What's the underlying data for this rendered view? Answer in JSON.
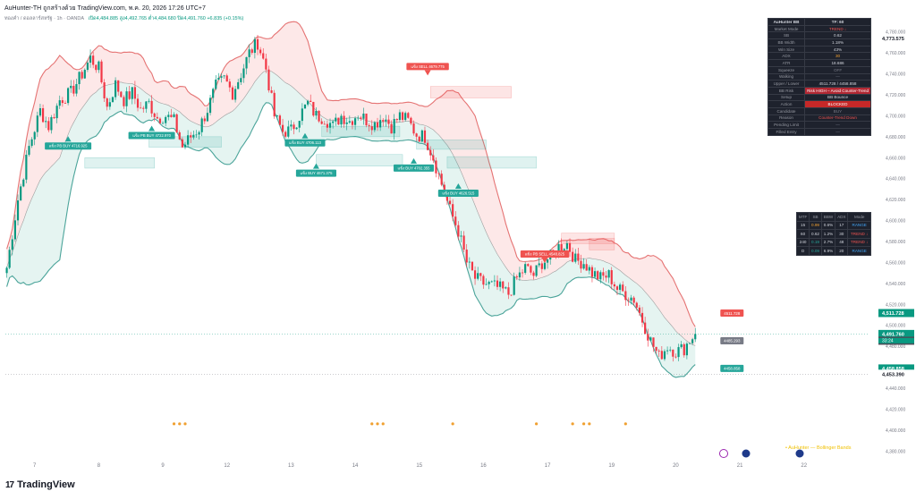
{
  "header": {
    "title": "AuHunter-TH ถูกสร้างด้วย TradingView.com, พ.ค. 20, 2026 17:26 UTC+7",
    "symbol_line": "ทองคำ / ดอลลาร์สหรัฐ · 1h · OANDA",
    "ohlc": "เปิด4,484.885  สูง4,492.765  ต่ำ4,484.680  ปิด4,491.760  +6.835 (+0.15%)"
  },
  "footer": {
    "logo_mark": "17",
    "logo_text": "TradingView",
    "indicator_label": "• AuHunter — Bollinger Bands"
  },
  "colors": {
    "up": "#089981",
    "down": "#f23645",
    "upper_band": "#e57373",
    "lower_band": "#4ba49a",
    "mid_band": "#9e9e9e",
    "fill_upper": "#fde4e4",
    "fill_lower": "#e0f2ef",
    "buy_label": "#26a69a",
    "sell_label": "#ef5350",
    "orange": "#f0a030"
  },
  "info_panel": {
    "title_left": "AuHunter BB",
    "title_right": "TF: 60",
    "rows": [
      {
        "k": "Market Mode",
        "v": "TREND ↓",
        "color": "#ef5350"
      },
      {
        "k": "SB",
        "v": "0.62"
      },
      {
        "k": "BB Width",
        "v": "1.18%"
      },
      {
        "k": "Win Size",
        "v": "43%"
      },
      {
        "k": "ADX",
        "v": "30",
        "color": "#f0a030"
      },
      {
        "k": "ATR",
        "v": "18.686"
      },
      {
        "k": "Squeeze",
        "v": "OFF",
        "color": "#787b86"
      },
      {
        "k": "Walking",
        "v": "—",
        "color": "#787b86"
      },
      {
        "k": "Upper / Lower",
        "v": "4511.728 / 4458.858"
      },
      {
        "k": "BB Risk",
        "v": "Risk HIGH – Avoid Counter-Trend",
        "bg": "#b22833"
      },
      {
        "k": "Setup",
        "v": "BB Bounce"
      },
      {
        "k": "Action",
        "v": "BLOCKED",
        "bg": "#c62828"
      },
      {
        "k": "Candidate",
        "v": "BUY",
        "color": "#787b86"
      },
      {
        "k": "Reason",
        "v": "Counter-Trend Down",
        "color": "#ef5350"
      },
      {
        "k": "Pending Limit",
        "v": "—",
        "color": "#787b86"
      },
      {
        "k": "Filled Entry",
        "v": "—",
        "color": "#787b86"
      }
    ]
  },
  "mtf_panel": {
    "headers": [
      "MTF",
      "SB",
      "BBW",
      "ADX",
      "Mode"
    ],
    "rows": [
      {
        "tf": "15",
        "sb": "0.99",
        "bbw": "0.6%",
        "adx": "17",
        "mode": "RANGE",
        "sb_color": "#f0a030",
        "mode_color": "#42a5f5"
      },
      {
        "tf": "60",
        "sb": "0.62",
        "bbw": "1.2%",
        "adx": "30",
        "mode": "TREND ↓",
        "sb_color": "#d1d4dc",
        "mode_color": "#ef5350"
      },
      {
        "tf": "240",
        "sb": "0.19",
        "bbw": "2.7%",
        "adx": "48",
        "mode": "TREND ↓",
        "sb_color": "#26a69a",
        "mode_color": "#ef5350"
      },
      {
        "tf": "D",
        "sb": "0.09",
        "bbw": "6.9%",
        "adx": "20",
        "mode": "RANGE",
        "sb_color": "#26a69a",
        "mode_color": "#42a5f5"
      }
    ]
  },
  "chart_data": {
    "type": "candlestick",
    "title": "",
    "ylim": [
      4370,
      4790
    ],
    "y_ticks": [
      4380,
      4400,
      4420,
      4440,
      4460,
      4480,
      4500,
      4520,
      4540,
      4560,
      4580,
      4600,
      4620,
      4640,
      4660,
      4680,
      4700,
      4720,
      4740,
      4760,
      4780
    ],
    "x_ticks": [
      {
        "label": "7",
        "bar": 10
      },
      {
        "label": "8",
        "bar": 33
      },
      {
        "label": "9",
        "bar": 56
      },
      {
        "label": "12",
        "bar": 79
      },
      {
        "label": "13",
        "bar": 102
      },
      {
        "label": "14",
        "bar": 125
      },
      {
        "label": "15",
        "bar": 148
      },
      {
        "label": "16",
        "bar": 171
      },
      {
        "label": "17",
        "bar": 194
      },
      {
        "label": "19",
        "bar": 217
      },
      {
        "label": "20",
        "bar": 240
      },
      {
        "label": "21",
        "bar": 263
      },
      {
        "label": "22",
        "bar": 286
      }
    ],
    "bar_count": 310,
    "last_bar": 247,
    "close_keypoints": [
      [
        0,
        4555
      ],
      [
        4,
        4620
      ],
      [
        8,
        4670
      ],
      [
        12,
        4705
      ],
      [
        15,
        4690
      ],
      [
        19,
        4715
      ],
      [
        23,
        4722
      ],
      [
        27,
        4740
      ],
      [
        30,
        4755
      ],
      [
        33,
        4745
      ],
      [
        36,
        4708
      ],
      [
        39,
        4730
      ],
      [
        42,
        4715
      ],
      [
        45,
        4722
      ],
      [
        48,
        4706
      ],
      [
        51,
        4712
      ],
      [
        54,
        4698
      ],
      [
        57,
        4700
      ],
      [
        60,
        4695
      ],
      [
        63,
        4670
      ],
      [
        66,
        4680
      ],
      [
        69,
        4688
      ],
      [
        72,
        4706
      ],
      [
        75,
        4728
      ],
      [
        78,
        4735
      ],
      [
        81,
        4722
      ],
      [
        84,
        4740
      ],
      [
        87,
        4760
      ],
      [
        90,
        4770
      ],
      [
        93,
        4745
      ],
      [
        96,
        4700
      ],
      [
        99,
        4685
      ],
      [
        102,
        4686
      ],
      [
        105,
        4700
      ],
      [
        108,
        4712
      ],
      [
        111,
        4700
      ],
      [
        114,
        4698
      ],
      [
        117,
        4690
      ],
      [
        120,
        4700
      ],
      [
        123,
        4695
      ],
      [
        126,
        4702
      ],
      [
        129,
        4696
      ],
      [
        132,
        4692
      ],
      [
        135,
        4700
      ],
      [
        138,
        4690
      ],
      [
        141,
        4700
      ],
      [
        144,
        4695
      ],
      [
        147,
        4682
      ],
      [
        150,
        4680
      ],
      [
        153,
        4660
      ],
      [
        156,
        4635
      ],
      [
        159,
        4610
      ],
      [
        162,
        4590
      ],
      [
        165,
        4560
      ],
      [
        168,
        4545
      ],
      [
        171,
        4540
      ],
      [
        174,
        4538
      ],
      [
        177,
        4535
      ],
      [
        180,
        4530
      ],
      [
        183,
        4545
      ],
      [
        186,
        4555
      ],
      [
        189,
        4548
      ],
      [
        192,
        4560
      ],
      [
        195,
        4565
      ],
      [
        198,
        4575
      ],
      [
        201,
        4578
      ],
      [
        204,
        4562
      ],
      [
        207,
        4560
      ],
      [
        210,
        4550
      ],
      [
        213,
        4545
      ],
      [
        216,
        4548
      ],
      [
        219,
        4535
      ],
      [
        222,
        4530
      ],
      [
        225,
        4525
      ],
      [
        228,
        4505
      ],
      [
        231,
        4485
      ],
      [
        234,
        4470
      ],
      [
        237,
        4480
      ],
      [
        240,
        4475
      ],
      [
        243,
        4478
      ],
      [
        245,
        4486
      ],
      [
        247,
        4491.76
      ]
    ],
    "y_axis_labels": [
      {
        "price": 4773.575,
        "text": "4,773.575",
        "bg": "#ffffff",
        "color": "#131722"
      },
      {
        "price": 4511.728,
        "text": "4,511.728",
        "bg": "#089981",
        "color": "#ffffff"
      },
      {
        "price": 4491.76,
        "text": "4,491.760",
        "bg": "#089981",
        "color": "#ffffff"
      },
      {
        "price": 4485.293,
        "text": "4,485.293",
        "bg": "#4a4e58",
        "color": "#ffffff"
      },
      {
        "price": 4458.858,
        "text": "4,458.858",
        "bg": "#089981",
        "color": "#ffffff"
      },
      {
        "price": 4453.39,
        "text": "4,453.390",
        "bg": "#ffffff",
        "color": "#131722"
      }
    ],
    "countdown": "33:24",
    "plot_labels": [
      {
        "price": 4511.728,
        "bar": 256,
        "text": "4511.728",
        "bg": "#ef5350"
      },
      {
        "price": 4485.293,
        "bar": 256,
        "text": "4485.293",
        "bg": "#787b86"
      },
      {
        "price": 4458.858,
        "bar": 256,
        "text": "4458.858",
        "bg": "#26a69a"
      }
    ],
    "signals": [
      {
        "type": "buy",
        "bar": 22,
        "price": 4672,
        "text": "แข็ง PB BUY 4716.925"
      },
      {
        "type": "buy",
        "bar": 52,
        "price": 4682,
        "text": "แข็ง PB BUY 4722.970"
      },
      {
        "type": "buy",
        "bar": 107,
        "price": 4675,
        "text": "แข็ง BUY 4706.113"
      },
      {
        "type": "buy",
        "bar": 111,
        "price": 4646,
        "text": "แข็ง BUY 4671.375"
      },
      {
        "type": "buy",
        "bar": 146,
        "price": 4651,
        "text": "แข็ง BUY 4702.355"
      },
      {
        "type": "buy",
        "bar": 162,
        "price": 4627,
        "text": "แข็ง BUY 4626.515"
      },
      {
        "type": "sell",
        "bar": 151,
        "price": 4747,
        "text": "แข็ง SELL 4679.775"
      },
      {
        "type": "sell",
        "bar": 193,
        "price": 4568,
        "text": "แข็ง PB SELL 4548.825"
      }
    ],
    "zones": [
      {
        "from_bar": 28,
        "to_bar": 53,
        "top": 4660,
        "bottom": 4650,
        "color": "teal"
      },
      {
        "from_bar": 51,
        "to_bar": 77,
        "top": 4680,
        "bottom": 4670,
        "color": "teal"
      },
      {
        "from_bar": 113,
        "to_bar": 141,
        "top": 4690,
        "bottom": 4680,
        "color": "teal"
      },
      {
        "from_bar": 111,
        "to_bar": 142,
        "top": 4663,
        "bottom": 4652,
        "color": "teal"
      },
      {
        "from_bar": 147,
        "to_bar": 172,
        "top": 4677,
        "bottom": 4668,
        "color": "teal"
      },
      {
        "from_bar": 158,
        "to_bar": 190,
        "top": 4661,
        "bottom": 4650,
        "color": "teal"
      },
      {
        "from_bar": 152,
        "to_bar": 181,
        "top": 4728,
        "bottom": 4717,
        "color": "red"
      },
      {
        "from_bar": 199,
        "to_bar": 218,
        "top": 4588,
        "bottom": 4578,
        "color": "red"
      },
      {
        "from_bar": 209,
        "to_bar": 218,
        "top": 4583,
        "bottom": 4572,
        "color": "red"
      }
    ],
    "dots_price": 4406,
    "dots": [
      60,
      62,
      64,
      131,
      133,
      135,
      160,
      190,
      203,
      207,
      209,
      222
    ]
  }
}
